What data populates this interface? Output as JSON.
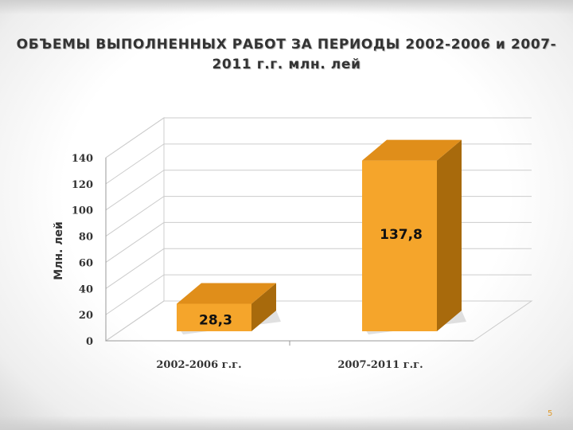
{
  "slide": {
    "title": "ОБЪЕМЫ  ВЫПОЛНЕННЫХ  РАБОТ  ЗА ПЕРИОДЫ  2002-2006  и  2007-2011  г.г. млн. лей",
    "page_number": "5"
  },
  "colors": {
    "bar_front": "#f5a52b",
    "bar_side": "#a86a0c",
    "bar_top": "#e08e1a",
    "grid": "#cccccc"
  },
  "chart_data": {
    "type": "bar",
    "categories": [
      "2002-2006 г.г.",
      "2007-2011 г.г."
    ],
    "values": [
      28.3,
      137.8
    ],
    "data_labels": [
      "28,3",
      "137,8"
    ],
    "ylabel": "Млн. лей",
    "ylim": [
      0,
      140
    ],
    "yticks": [
      0,
      20,
      40,
      60,
      80,
      100,
      120,
      140
    ],
    "grid": true,
    "legend": "none",
    "style": "3d"
  }
}
